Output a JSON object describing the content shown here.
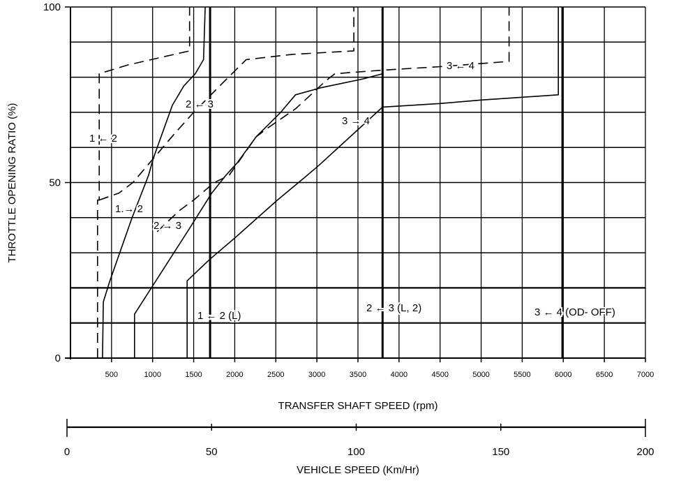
{
  "chart_data": {
    "type": "line",
    "title": "",
    "xlabel": "TRANSFER SHAFT SPEED (rpm)",
    "ylabel": "THROTTLE OPENING RATIO (%)",
    "xlim": [
      0,
      7000
    ],
    "ylim": [
      0,
      100
    ],
    "grid": true,
    "x_ticks": [
      "500",
      "1000",
      "1500",
      "2000",
      "2500",
      "3000",
      "3500",
      "4000",
      "4500",
      "5000",
      "5500",
      "6000",
      "6500",
      "7000"
    ],
    "x_tick_values": [
      500,
      1000,
      1500,
      2000,
      2500,
      3000,
      3500,
      4000,
      4500,
      5000,
      5500,
      6000,
      6500,
      7000
    ],
    "y_ticks": [
      "0",
      "50",
      "100"
    ],
    "y_tick_values": [
      0,
      50,
      100
    ],
    "secondary_axis": {
      "label": "VEHICLE SPEED (Km/Hr)",
      "range": [
        0,
        200
      ],
      "ticks": [
        "0",
        "50",
        "100",
        "150",
        "200"
      ],
      "tick_values": [
        0,
        50,
        100,
        150,
        200
      ]
    },
    "series": [
      {
        "name": "1 → 2",
        "style": "solid",
        "points": [
          [
            390,
            0
          ],
          [
            400,
            16
          ],
          [
            480,
            22
          ],
          [
            750,
            40
          ],
          [
            950,
            52
          ],
          [
            1010,
            57
          ],
          [
            1240,
            72
          ],
          [
            1380,
            77.5
          ],
          [
            1520,
            81
          ],
          [
            1620,
            85
          ],
          [
            1640,
            100
          ]
        ]
      },
      {
        "name": "2 → 3",
        "style": "solid",
        "points": [
          [
            780,
            0
          ],
          [
            780,
            12.5
          ],
          [
            1435,
            36.4
          ],
          [
            1720,
            47
          ],
          [
            1890,
            52
          ],
          [
            2030,
            55.6
          ],
          [
            2260,
            63
          ],
          [
            2560,
            70
          ],
          [
            2740,
            75
          ],
          [
            3050,
            77
          ],
          [
            3560,
            79.5
          ],
          [
            3800,
            81
          ],
          [
            3800,
            100
          ]
        ]
      },
      {
        "name": "3 → 4",
        "style": "solid",
        "points": [
          [
            1420,
            0
          ],
          [
            1420,
            22
          ],
          [
            1690,
            28
          ],
          [
            2010,
            34.4
          ],
          [
            2520,
            45
          ],
          [
            2880,
            52
          ],
          [
            3030,
            55
          ],
          [
            3590,
            67
          ],
          [
            3800,
            71.5
          ],
          [
            4500,
            72.5
          ],
          [
            5000,
            73.5
          ],
          [
            5940,
            75
          ],
          [
            5940,
            100
          ]
        ]
      },
      {
        "name": "1 ← 2",
        "style": "dashed",
        "points": [
          [
            330,
            0
          ],
          [
            330,
            45
          ],
          [
            350,
            45
          ],
          [
            350,
            81
          ],
          [
            700,
            83.5
          ],
          [
            1450,
            87.5
          ],
          [
            1450,
            100
          ]
        ]
      },
      {
        "name": "2 ← 3",
        "style": "dashed",
        "points": [
          [
            350,
            45
          ],
          [
            590,
            47
          ],
          [
            760,
            50
          ],
          [
            1270,
            64
          ],
          [
            1500,
            70
          ],
          [
            1860,
            78.5
          ],
          [
            2140,
            85
          ],
          [
            2700,
            86.5
          ],
          [
            3450,
            87.5
          ],
          [
            3450,
            100
          ]
        ]
      },
      {
        "name": "3 ← 4",
        "style": "dashed",
        "points": [
          [
            1055,
            36
          ],
          [
            1325,
            42
          ],
          [
            1500,
            45
          ],
          [
            1750,
            50
          ],
          [
            1930,
            52
          ],
          [
            2260,
            63
          ],
          [
            2400,
            65.5
          ],
          [
            2740,
            71
          ],
          [
            2880,
            74
          ],
          [
            3110,
            79
          ],
          [
            3220,
            81
          ],
          [
            3800,
            82
          ],
          [
            4500,
            83
          ],
          [
            5340,
            84.5
          ],
          [
            5340,
            100
          ]
        ]
      },
      {
        "name": "1 ← 2 (L)",
        "style": "thick",
        "points": [
          [
            1700,
            0
          ],
          [
            1700,
            100
          ]
        ]
      },
      {
        "name": "2 ← 3 (L, 2)",
        "style": "thick",
        "points": [
          [
            3800,
            0
          ],
          [
            3800,
            100
          ]
        ]
      },
      {
        "name": "3 ← 4 (OD- OFF)",
        "style": "thick",
        "points": [
          [
            5990,
            0
          ],
          [
            5990,
            100
          ]
        ]
      }
    ],
    "annotations": [
      "1 ← 2",
      "2 ← 3",
      "1.→ 2",
      "2 → 3",
      "3 → 4",
      "3 ← 4",
      "1 ← 2 (L)",
      "2 ← 3 (L, 2)",
      "3 ← 4 (OD- OFF)"
    ]
  }
}
